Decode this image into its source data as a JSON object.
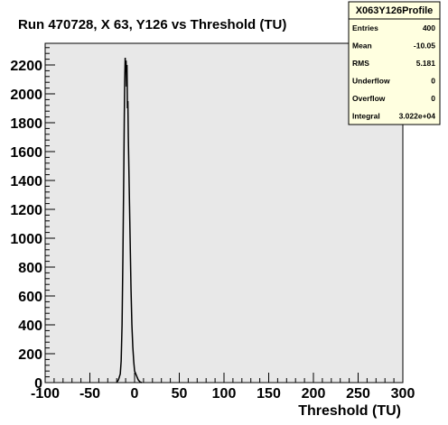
{
  "chart_data": {
    "type": "line",
    "title": "Run 470728, X 63, Y126 vs Threshold (TU)",
    "xlabel": "Threshold (TU)",
    "ylabel": "",
    "xlim": [
      -100,
      300
    ],
    "ylim": [
      0,
      2350
    ],
    "x_ticks": [
      -100,
      -50,
      0,
      50,
      100,
      150,
      200,
      250,
      300
    ],
    "y_ticks": [
      0,
      200,
      400,
      600,
      800,
      1000,
      1200,
      1400,
      1600,
      1800,
      2000,
      2200
    ],
    "grid": false,
    "series": [
      {
        "x": [
          -20,
          -18,
          -16,
          -15,
          -14,
          -13,
          -12,
          -11.5,
          -11,
          -10.5,
          -10,
          -9.5,
          -9,
          -8.5,
          -8,
          -7.5,
          -7,
          -6,
          -5,
          -4,
          -3,
          -2,
          -1,
          0,
          2,
          4,
          6,
          8
        ],
        "y": [
          0,
          20,
          60,
          150,
          400,
          900,
          1500,
          1850,
          2100,
          2250,
          2150,
          2230,
          2050,
          2200,
          1900,
          1950,
          1700,
          1350,
          1000,
          650,
          400,
          250,
          150,
          80,
          50,
          20,
          5,
          0
        ]
      }
    ]
  },
  "stats_box": {
    "name": "X063Y126Profile",
    "rows": [
      {
        "label": "Entries",
        "value": "400"
      },
      {
        "label": "Mean",
        "value": "-10.05"
      },
      {
        "label": "RMS",
        "value": "5.181"
      },
      {
        "label": "Underflow",
        "value": "0"
      },
      {
        "label": "Overflow",
        "value": "0"
      },
      {
        "label": "Integral",
        "value": "3.022e+04"
      }
    ]
  },
  "colors": {
    "frame_bg": "#e8e8e8",
    "stats_bg": "#ffffe0",
    "line": "#000000"
  }
}
